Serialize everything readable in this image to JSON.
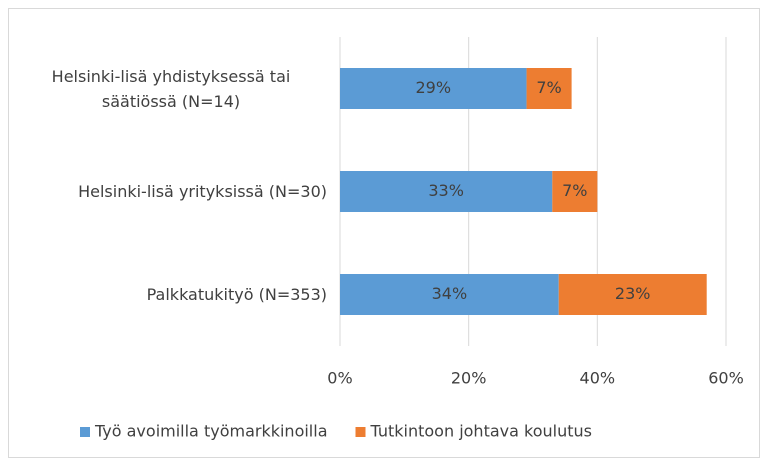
{
  "chart_data": {
    "type": "stacked_barh",
    "categories": [
      "Helsinki-lisä yhdistyksessä tai säätiössä (N=14)",
      "Helsinki-lisä yrityksissä (N=30)",
      "Palkkatukityö (N=353)"
    ],
    "series": [
      {
        "name": "Työ avoimilla työmarkkinoilla",
        "color": "#5b9bd5",
        "values": [
          29,
          33,
          34
        ],
        "value_labels": [
          "29%",
          "33%",
          "34%"
        ]
      },
      {
        "name": "Tutkintoon johtava koulutus",
        "color": "#ed7d31",
        "values": [
          7,
          7,
          23
        ],
        "value_labels": [
          "7%",
          "7%",
          "23%"
        ]
      }
    ],
    "xlim": [
      0,
      60
    ],
    "xticks": [
      {
        "value": 0,
        "label": "0%"
      },
      {
        "value": 20,
        "label": "20%"
      },
      {
        "value": 40,
        "label": "40%"
      },
      {
        "value": 60,
        "label": "60%"
      }
    ],
    "grid": true,
    "legend": "bottom"
  }
}
